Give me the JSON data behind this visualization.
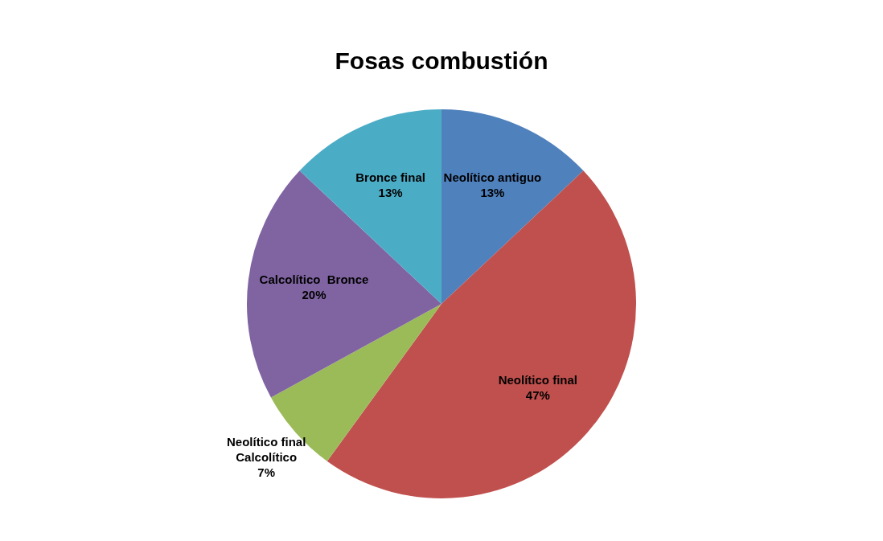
{
  "chart_data": {
    "type": "pie",
    "title": "Fosas combustión",
    "categories": [
      "Neolítico antiguo",
      "Neolítico final",
      "Neolítico final Calcolítico",
      "Calcolítico  Bronce",
      "Bronce final"
    ],
    "values": [
      13,
      47,
      7,
      20,
      13
    ],
    "colors": [
      "#4f81bd",
      "#c0504d",
      "#9bbb59",
      "#8064a2",
      "#4bacc6"
    ],
    "value_labels": [
      "13%",
      "47%",
      "7%",
      "20%",
      "13%"
    ],
    "legend": false
  }
}
